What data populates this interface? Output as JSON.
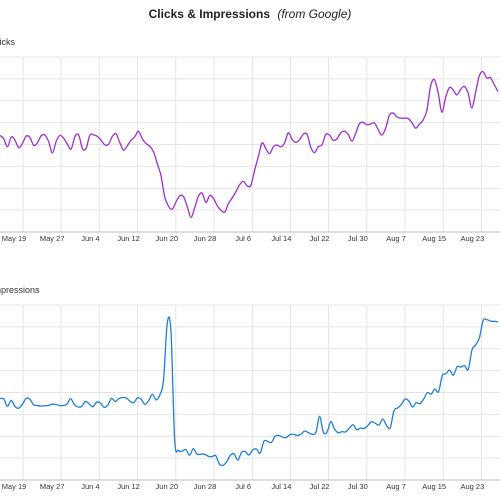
{
  "chart_title": {
    "main": "Clicks & Impressions",
    "sub": "(from Google)"
  },
  "chart_data": [
    {
      "type": "line",
      "ylabel": "Clicks",
      "color": "#9b30d0",
      "x_ticks": [
        "May 19",
        "May 27",
        "Jun 4",
        "Jun 12",
        "Jun 20",
        "Jun 28",
        "Jul 6",
        "Jul 14",
        "Jul 22",
        "Jul 30",
        "Aug 7",
        "Aug 15",
        "Aug 23"
      ],
      "grid": true,
      "values": [
        57.5,
        56.4,
        53.7,
        57.0,
        55.9,
        53.4,
        54.9,
        57.3,
        56.8,
        54.2,
        55.1,
        57.4,
        57.6,
        55.4,
        51.7,
        55.5,
        57.5,
        56.6,
        54.6,
        53.0,
        57.1,
        57.7,
        53.2,
        53.2,
        57.6,
        57.7,
        57.2,
        55.9,
        54.4,
        54.6,
        57.2,
        58.0,
        55.1,
        52.6,
        54.1,
        55.9,
        57.1,
        58.9,
        56.4,
        54.8,
        53.9,
        52.1,
        48.2,
        44.2,
        37.1,
        34.1,
        33.1,
        35.5,
        37.5,
        37.3,
        34.0,
        30.4,
        33.6,
        37.4,
        38.4,
        35.3,
        37.6,
        36.7,
        34.3,
        32.8,
        32.1,
        34.9,
        36.8,
        38.9,
        41.2,
        42.3,
        40.8,
        41.0,
        46.0,
        50.5,
        55.0,
        53.1,
        51.5,
        53.7,
        54.3,
        53.7,
        55.0,
        58.4,
        56.2,
        55.2,
        56.1,
        57.9,
        57.9,
        53.6,
        51.8,
        53.8,
        54.4,
        57.8,
        57.6,
        55.9,
        56.4,
        58.3,
        58.9,
        57.8,
        55.6,
        58.2,
        61.4,
        61.8,
        61.0,
        61.3,
        61.6,
        59.4,
        57.6,
        59.9,
        64.2,
        64.9,
        63.6,
        63.2,
        63.2,
        63.1,
        61.8,
        59.9,
        61.2,
        62.6,
        65.8,
        73.8,
        76.0,
        71.7,
        65.2,
        70.0,
        73.3,
        72.6,
        70.9,
        72.7,
        73.7,
        71.6,
        66.6,
        71.6,
        77.2,
        78.6,
        76.5,
        76.6,
        74.3,
        72.0
      ]
    },
    {
      "type": "line",
      "ylabel": "Impressions",
      "color": "#1f7ed6",
      "x_ticks": [
        "May 19",
        "May 27",
        "Jun 4",
        "Jun 12",
        "Jun 20",
        "Jun 28",
        "Jul 6",
        "Jul 14",
        "Jul 22",
        "Jul 30",
        "Aug 7",
        "Aug 15",
        "Aug 23"
      ],
      "grid": true,
      "values": [
        27.5,
        27.4,
        23.9,
        26.7,
        23.9,
        23.0,
        24.8,
        27.5,
        27.3,
        24.7,
        24.3,
        24.0,
        24.2,
        24.3,
        24.9,
        24.8,
        24.3,
        24.3,
        24.9,
        27.5,
        24.7,
        23.6,
        23.9,
        26.2,
        25.0,
        23.7,
        25.8,
        25.5,
        23.4,
        24.5,
        27.6,
        26.2,
        27.5,
        28.0,
        27.8,
        26.2,
        25.6,
        27.9,
        27.2,
        24.8,
        26.6,
        29.5,
        26.9,
        29.2,
        36.1,
        62.6,
        58.8,
        8.1,
        3.4,
        3.0,
        3.8,
        1.1,
        4.2,
        1.6,
        1.6,
        1.6,
        0.7,
        0.4,
        1.0,
        -2.9,
        -3.6,
        -1.9,
        1.1,
        1.7,
        -1.2,
        2.5,
        2.8,
        1.2,
        3.6,
        4.0,
        2.0,
        7.6,
        7.6,
        7.0,
        9.9,
        10.3,
        9.6,
        9.3,
        10.7,
        10.9,
        10.3,
        11.0,
        12.4,
        11.6,
        10.9,
        11.7,
        19.2,
        11.8,
        11.9,
        16.8,
        13.4,
        11.6,
        12.1,
        12.0,
        13.7,
        15.3,
        13.0,
        13.8,
        13.6,
        15.0,
        16.7,
        16.0,
        15.2,
        18.0,
        15.0,
        13.9,
        21.8,
        23.1,
        24.8,
        27.3,
        26.4,
        23.6,
        25.6,
        25.1,
        27.3,
        30.3,
        29.6,
        31.9,
        30.7,
        38.2,
        39.1,
        40.8,
        38.4,
        42.4,
        42.2,
        42.9,
        41.1,
        50.2,
        52.6,
        55.9,
        63.9,
        64.3,
        63.6,
        63.5,
        63.2
      ]
    }
  ]
}
